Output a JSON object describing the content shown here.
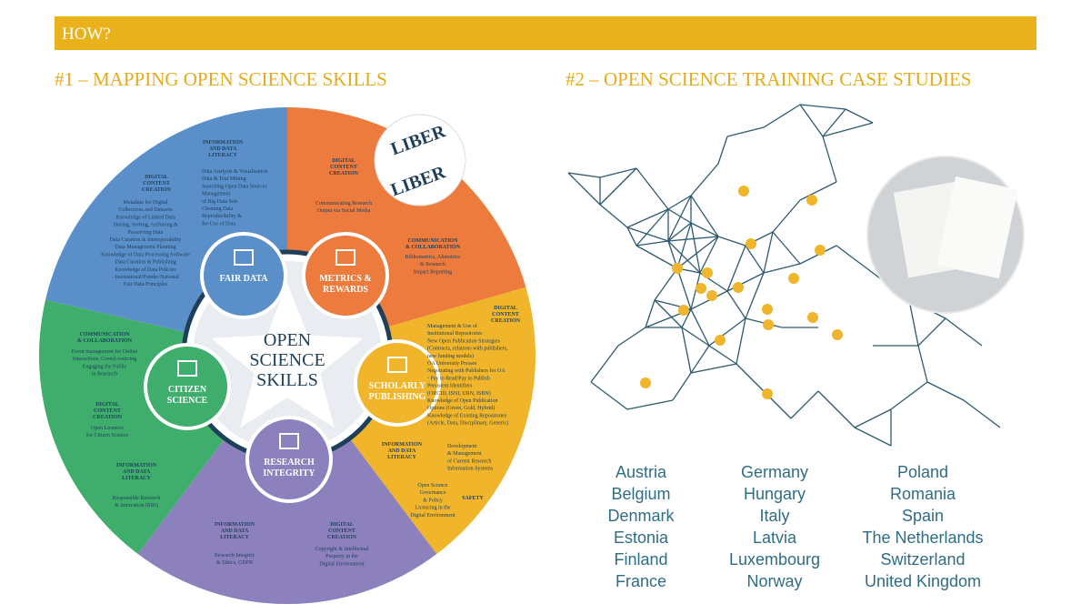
{
  "header": {
    "title": "HOW?"
  },
  "sections": [
    {
      "title": "#1 – MAPPING OPEN SCIENCE SKILLS"
    },
    {
      "title": "#2 – OPEN SCIENCE TRAINING CASE STUDIES"
    }
  ],
  "wheel": {
    "center": [
      "OPEN",
      "SCIENCE",
      "SKILLS"
    ],
    "logo": [
      "LIBER",
      "LIBER"
    ],
    "pillars": [
      {
        "label": [
          "FAIR DATA"
        ]
      },
      {
        "label": [
          "METRICS &",
          "REWARDS"
        ]
      },
      {
        "label": [
          "SCHOLARLY",
          "PUBLISHING"
        ]
      },
      {
        "label": [
          "RESEARCH",
          "INTEGRITY"
        ]
      },
      {
        "label": [
          "CITIZEN",
          "SCIENCE"
        ]
      }
    ],
    "blocks": [
      {
        "heading": [
          "INFORMATION",
          "AND DATA",
          "LITERACY"
        ],
        "items": [
          "Data Analysis & Visualisation",
          "Data & Text Mining",
          "Searching Open Data Sources",
          "Management",
          "of Big Data Sets",
          "Cleaning Data",
          "Reproducibility &",
          "Re-Use of Data"
        ]
      },
      {
        "heading": [
          "DIGITAL",
          "CONTENT",
          "CREATION"
        ],
        "items": [
          "Metadata for Digital",
          "Collections and Datasets",
          "Knowledge of Linked Data",
          "Storing, Sorting, Archiving &",
          "Preserving Data",
          "Data Curation & Interoperability",
          "Data Management Planning",
          "Knowledge of Data Processing Software",
          "Data Curation & Publishing",
          "Knowledge of Data Policies",
          "- Institutional/Funder/National",
          "Fair Data Principles"
        ]
      },
      {
        "heading": [
          "DIGITAL",
          "CONTENT",
          "CREATION"
        ],
        "items": [
          "Communicating Research",
          "Output via Social Media"
        ]
      },
      {
        "heading": [
          "COMMUNICATION",
          "& COLLABORATION"
        ],
        "items": [
          "Bibliometrics, Altmetrics",
          "& Research",
          "Impact Reporting"
        ]
      },
      {
        "heading": [
          "DIGITAL",
          "CONTENT",
          "CREATION"
        ],
        "items": []
      },
      {
        "heading": [],
        "items": [
          "Management & Use of",
          "Institutional Repositories",
          "New Open Publication Strategies",
          "(Contracts, relations with publishers,",
          "new funding models)",
          "OA University Presses",
          "Negotiating with Publishers for OA",
          "- Pay to Read/Pay to Publish",
          "Persistent Identifiers",
          "(ORCID, ISNI, URN, ISBN)",
          "Knowledge of Open Publication",
          "Options (Green, Gold, Hybrid)",
          "Knowledge of Existing Repositories",
          "(Article, Data, Disciplinary, Generic)"
        ]
      },
      {
        "heading": [
          "INFORMATION",
          "AND DATA",
          "LITERACY"
        ],
        "items": [
          "Development",
          "& Management",
          "of Current Research",
          "Information Systems"
        ]
      },
      {
        "heading": [
          "SAFETY"
        ],
        "items": [
          "Open Science",
          "Governance",
          "& Policy",
          "Licencing in the",
          "Digital Environment"
        ]
      },
      {
        "heading": [
          "INFORMATION",
          "AND DATA",
          "LITERACY"
        ],
        "items": [
          "Research Integrity",
          "& Ethics, GDPR"
        ]
      },
      {
        "heading": [
          "DIGITAL",
          "CONTENT",
          "CREATION"
        ],
        "items": [
          "Copyright & Intellectual",
          "Property in the",
          "Digital Environment"
        ]
      },
      {
        "heading": [
          "COMMUNICATION",
          "& COLLABORATION"
        ],
        "items": [
          "Event management for Online",
          "Interactions, Crowd-sourcing",
          "Engaging the Public",
          "in Research"
        ]
      },
      {
        "heading": [
          "DIGITAL",
          "CONTENT",
          "CREATION"
        ],
        "items": [
          "Open Licences",
          "for Citizen Science"
        ]
      },
      {
        "heading": [
          "INFORMATION",
          "AND DATA",
          "LITERACY"
        ],
        "items": [
          "Responsible Research",
          "& Innovation (RRI)"
        ]
      }
    ]
  },
  "countries": [
    [
      "Austria",
      "Belgium",
      "Denmark",
      "Estonia",
      "Finland",
      "France"
    ],
    [
      "Germany",
      "Hungary",
      "Italy",
      "Latvia",
      "Luxembourg",
      "Norway"
    ],
    [
      "Poland",
      "Romania",
      "Spain",
      "The Netherlands",
      "Switzerland",
      "United Kingdom"
    ]
  ]
}
